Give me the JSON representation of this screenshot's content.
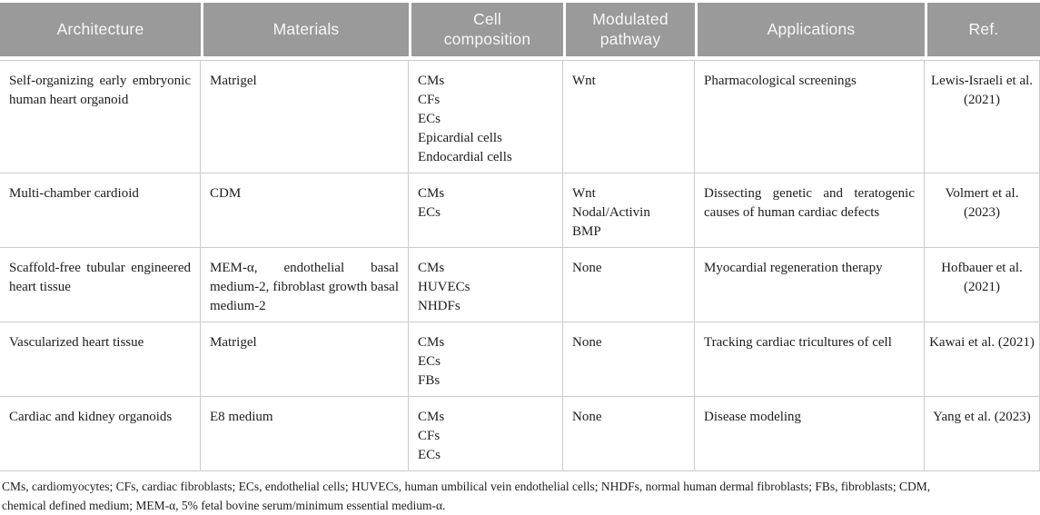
{
  "colors": {
    "header_bg": "#9a9a9a",
    "header_text": "#f7f7f7",
    "border": "#cbcbcb",
    "body_text": "#1c1c1c"
  },
  "table": {
    "columns": [
      {
        "key": "architecture",
        "label": "Architecture",
        "label_lines": [
          "Architecture"
        ]
      },
      {
        "key": "materials",
        "label": "Materials",
        "label_lines": [
          "Materials"
        ]
      },
      {
        "key": "cell-composition",
        "label": "Cell composition",
        "label_lines": [
          "Cell",
          "composition"
        ]
      },
      {
        "key": "modulated-pathway",
        "label": "Modulated pathway",
        "label_lines": [
          "Modulated",
          "pathway"
        ]
      },
      {
        "key": "applications",
        "label": "Applications",
        "label_lines": [
          "Applications"
        ]
      },
      {
        "key": "ref",
        "label": "Ref.",
        "label_lines": [
          "Ref."
        ]
      }
    ],
    "rows": [
      {
        "cells": [
          "Self-organizing early embryonic human heart organoid",
          "Matrigel",
          [
            "CMs",
            "CFs",
            "ECs",
            "Epicardial cells",
            "Endocardial cells"
          ],
          [
            "Wnt"
          ],
          "Pharmacological screenings",
          "Lewis-Israeli et al. (2021)"
        ]
      },
      {
        "cells": [
          "Multi-chamber cardioid",
          "CDM",
          [
            "CMs",
            "ECs"
          ],
          [
            "Wnt",
            "Nodal/Activin",
            "BMP"
          ],
          "Dissecting genetic and teratogenic causes of human cardiac defects",
          "Volmert et al. (2023)"
        ]
      },
      {
        "cells": [
          "Scaffold-free tubular engineered heart tissue",
          "MEM-α, endothelial basal medium-2, fibroblast growth basal medium-2",
          [
            "CMs",
            "HUVECs",
            "NHDFs"
          ],
          [
            "None"
          ],
          "Myocardial regeneration therapy",
          "Hofbauer et al. (2021)"
        ]
      },
      {
        "cells": [
          "Vascularized heart tissue",
          "Matrigel",
          [
            "CMs",
            "ECs",
            "FBs"
          ],
          [
            "None"
          ],
          "Tracking cardiac tricultures of cell",
          "Kawai et al. (2021)"
        ]
      },
      {
        "cells": [
          "Cardiac and kidney organoids",
          "E8 medium",
          [
            "CMs",
            "CFs",
            "ECs"
          ],
          [
            "None"
          ],
          "Disease modeling",
          "Yang et al. (2023)"
        ]
      }
    ]
  },
  "footnote": {
    "line1": "CMs, cardiomyocytes; CFs, cardiac fibroblasts; ECs, endothelial cells; HUVECs, human umbilical vein endothelial cells; NHDFs, normal human dermal fibroblasts; FBs, fibroblasts; CDM,",
    "line2": "chemical defined medium; MEM-α, 5% fetal bovine serum/minimum essential medium-α."
  }
}
